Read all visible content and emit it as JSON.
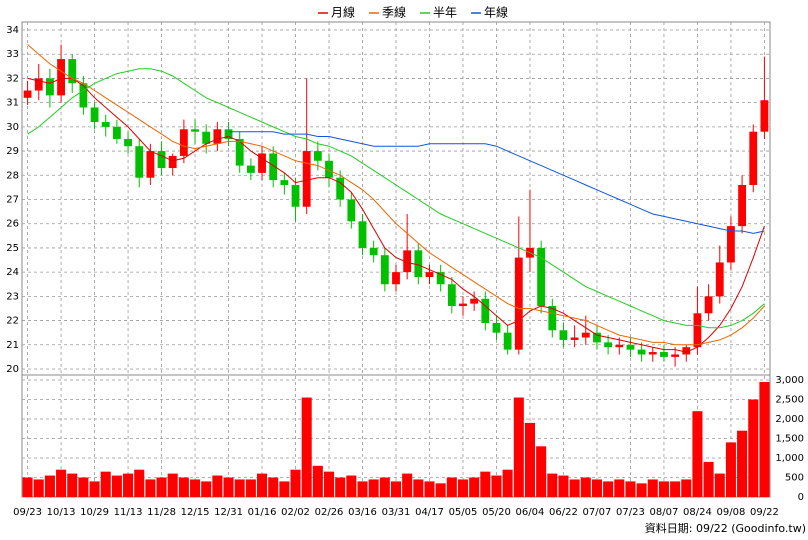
{
  "chart_data": {
    "type": "candlestick",
    "grid": true,
    "up_color": "#ff0000",
    "down_color": "#00c000",
    "volume_color": "#ff0000",
    "categories": [
      "09/23",
      null,
      null,
      "10/13",
      null,
      null,
      "10/29",
      null,
      null,
      "11/13",
      null,
      null,
      "11/28",
      null,
      null,
      "12/15",
      null,
      null,
      "12/31",
      null,
      null,
      "01/16",
      null,
      null,
      "02/02",
      null,
      null,
      "02/26",
      null,
      null,
      "03/16",
      null,
      null,
      "03/31",
      null,
      null,
      "04/17",
      null,
      null,
      "05/05",
      null,
      null,
      "05/20",
      null,
      null,
      "06/04",
      null,
      null,
      "06/22",
      null,
      null,
      "07/07",
      null,
      null,
      "07/23",
      null,
      null,
      "08/07",
      null,
      null,
      "08/24",
      null,
      null,
      "09/08",
      null,
      null,
      "09/22"
    ],
    "open": [
      31.2,
      31.5,
      32.0,
      31.3,
      32.8,
      31.8,
      30.8,
      30.2,
      30.0,
      29.5,
      29.2,
      27.9,
      29.0,
      28.3,
      28.8,
      29.9,
      29.8,
      29.3,
      29.9,
      29.5,
      28.4,
      28.1,
      28.9,
      27.8,
      27.6,
      26.7,
      29.0,
      28.6,
      27.9,
      27.0,
      26.1,
      25.0,
      24.7,
      23.5,
      24.0,
      24.9,
      23.8,
      24.0,
      23.5,
      22.6,
      22.7,
      22.9,
      21.9,
      21.5,
      20.8,
      24.6,
      25.0,
      22.6,
      21.6,
      21.2,
      21.3,
      21.5,
      21.1,
      20.9,
      21.0,
      20.8,
      20.6,
      20.7,
      20.5,
      20.6,
      20.9,
      22.3,
      23.0,
      24.4,
      25.9,
      27.6,
      29.8
    ],
    "high": [
      31.9,
      32.6,
      32.4,
      33.4,
      33.0,
      32.1,
      31.0,
      30.5,
      30.3,
      29.8,
      29.5,
      29.3,
      29.4,
      28.9,
      30.3,
      30.3,
      30.1,
      30.2,
      30.2,
      29.8,
      28.7,
      29.2,
      29.2,
      28.1,
      27.9,
      32.0,
      29.4,
      28.9,
      28.2,
      27.3,
      26.4,
      25.3,
      25.0,
      24.3,
      26.4,
      25.2,
      24.3,
      24.3,
      23.8,
      23.0,
      23.2,
      23.2,
      22.2,
      21.8,
      26.3,
      27.4,
      25.3,
      22.9,
      21.9,
      21.8,
      22.2,
      21.8,
      21.4,
      21.3,
      21.3,
      21.1,
      20.9,
      21.0,
      20.9,
      21.0,
      23.4,
      23.5,
      25.1,
      26.3,
      28.0,
      30.1,
      32.9
    ],
    "low": [
      30.9,
      31.1,
      30.8,
      31.0,
      31.4,
      30.5,
      29.9,
      29.6,
      29.3,
      28.9,
      27.5,
      27.6,
      28.0,
      28.0,
      28.5,
      29.3,
      28.9,
      29.0,
      29.2,
      28.1,
      27.8,
      27.8,
      27.5,
      27.2,
      26.1,
      26.4,
      28.2,
      27.5,
      26.7,
      25.8,
      24.7,
      24.4,
      23.2,
      23.2,
      23.7,
      23.5,
      23.5,
      23.2,
      22.3,
      22.2,
      22.4,
      21.6,
      21.2,
      20.6,
      20.6,
      24.0,
      22.3,
      21.3,
      20.9,
      20.9,
      21.0,
      20.8,
      20.6,
      20.6,
      20.5,
      20.3,
      20.3,
      20.3,
      20.1,
      20.3,
      20.6,
      22.0,
      22.7,
      24.1,
      25.6,
      27.3,
      29.5
    ],
    "close": [
      31.5,
      32.0,
      31.3,
      32.8,
      31.8,
      30.8,
      30.2,
      30.0,
      29.5,
      29.2,
      27.9,
      29.0,
      28.3,
      28.8,
      29.9,
      29.8,
      29.3,
      29.9,
      29.5,
      28.4,
      28.1,
      28.9,
      27.8,
      27.6,
      26.7,
      29.0,
      28.6,
      27.9,
      27.0,
      26.1,
      25.0,
      24.7,
      23.5,
      24.0,
      24.9,
      23.8,
      24.0,
      23.5,
      22.6,
      22.7,
      22.9,
      21.9,
      21.5,
      20.8,
      24.6,
      25.0,
      22.6,
      21.6,
      21.2,
      21.3,
      21.5,
      21.1,
      20.9,
      21.0,
      20.8,
      20.6,
      20.7,
      20.5,
      20.6,
      20.9,
      22.3,
      23.0,
      24.4,
      25.9,
      27.6,
      29.8,
      31.1
    ],
    "volume": [
      500,
      450,
      550,
      700,
      600,
      500,
      400,
      650,
      550,
      600,
      700,
      450,
      500,
      600,
      500,
      450,
      400,
      550,
      500,
      450,
      450,
      600,
      500,
      400,
      700,
      2550,
      800,
      650,
      500,
      550,
      400,
      450,
      500,
      400,
      600,
      450,
      400,
      350,
      500,
      450,
      500,
      650,
      550,
      700,
      2550,
      1900,
      1300,
      600,
      550,
      450,
      500,
      450,
      400,
      450,
      400,
      350,
      450,
      400,
      400,
      450,
      2200,
      900,
      600,
      1400,
      1700,
      2500,
      2950
    ],
    "series": [
      {
        "name": "月線",
        "color": "#dd0000",
        "values": [
          32.0,
          31.9,
          31.8,
          32.0,
          32.0,
          31.7,
          31.2,
          30.8,
          30.4,
          30.0,
          29.5,
          29.0,
          28.8,
          28.6,
          28.7,
          29.0,
          29.3,
          29.5,
          29.6,
          29.4,
          29.0,
          28.7,
          28.4,
          28.1,
          27.7,
          27.8,
          27.9,
          27.9,
          27.7,
          27.3,
          26.6,
          25.8,
          25.0,
          24.6,
          24.4,
          24.3,
          24.1,
          23.9,
          23.7,
          23.3,
          23.0,
          22.6,
          22.2,
          21.8,
          22.0,
          22.4,
          22.6,
          22.5,
          22.3,
          22.0,
          21.7,
          21.4,
          21.3,
          21.2,
          21.1,
          21.0,
          20.9,
          20.8,
          20.8,
          20.7,
          20.9,
          21.3,
          21.8,
          22.5,
          23.4,
          24.6,
          25.9
        ]
      },
      {
        "name": "季線",
        "color": "#ee6600",
        "values": [
          33.4,
          33.0,
          32.6,
          32.3,
          32.0,
          31.8,
          31.5,
          31.2,
          30.9,
          30.6,
          30.3,
          30.0,
          29.7,
          29.4,
          29.2,
          29.1,
          29.2,
          29.3,
          29.4,
          29.4,
          29.3,
          29.2,
          29.0,
          28.8,
          28.6,
          28.5,
          28.4,
          28.2,
          28.0,
          27.7,
          27.4,
          27.0,
          26.5,
          26.0,
          25.6,
          25.2,
          24.8,
          24.5,
          24.2,
          23.9,
          23.6,
          23.3,
          23.0,
          22.7,
          22.5,
          22.5,
          22.4,
          22.3,
          22.2,
          22.1,
          22.0,
          21.8,
          21.6,
          21.4,
          21.3,
          21.2,
          21.1,
          21.1,
          21.0,
          21.0,
          21.0,
          21.1,
          21.2,
          21.4,
          21.7,
          22.1,
          22.6
        ]
      },
      {
        "name": "半年",
        "color": "#22cc22",
        "values": [
          29.7,
          30.0,
          30.4,
          30.8,
          31.2,
          31.5,
          31.8,
          32.0,
          32.2,
          32.3,
          32.4,
          32.4,
          32.3,
          32.1,
          31.8,
          31.5,
          31.2,
          31.0,
          30.8,
          30.6,
          30.4,
          30.2,
          30.0,
          29.8,
          29.6,
          29.5,
          29.3,
          29.2,
          29.0,
          28.8,
          28.5,
          28.2,
          27.9,
          27.6,
          27.3,
          27.0,
          26.7,
          26.4,
          26.2,
          26.0,
          25.8,
          25.6,
          25.4,
          25.2,
          25.0,
          24.8,
          24.6,
          24.3,
          24.0,
          23.7,
          23.4,
          23.2,
          23.0,
          22.8,
          22.6,
          22.4,
          22.2,
          22.0,
          21.9,
          21.8,
          21.8,
          21.7,
          21.7,
          21.8,
          22.0,
          22.3,
          22.7
        ]
      },
      {
        "name": "年線",
        "color": "#1155dd",
        "values": [
          null,
          null,
          null,
          null,
          null,
          null,
          null,
          null,
          null,
          null,
          null,
          null,
          null,
          null,
          null,
          null,
          null,
          null,
          29.8,
          29.8,
          29.8,
          29.8,
          29.8,
          29.7,
          29.7,
          29.7,
          29.6,
          29.6,
          29.5,
          29.4,
          29.3,
          29.2,
          29.2,
          29.2,
          29.2,
          29.2,
          29.3,
          29.3,
          29.3,
          29.3,
          29.3,
          29.3,
          29.2,
          29.0,
          28.8,
          28.6,
          28.4,
          28.2,
          28.0,
          27.8,
          27.6,
          27.4,
          27.2,
          27.0,
          26.8,
          26.6,
          26.4,
          26.3,
          26.2,
          26.1,
          26.0,
          25.9,
          25.8,
          25.7,
          25.7,
          25.6,
          25.7
        ]
      }
    ],
    "ylim": [
      20,
      34
    ],
    "yticks": [
      20,
      21,
      22,
      23,
      24,
      25,
      26,
      27,
      28,
      29,
      30,
      31,
      32,
      33,
      34
    ],
    "y2lim": [
      0,
      3000
    ],
    "y2ticks": [
      0,
      500,
      {
        "value": 1000,
        "label": "1,000"
      },
      {
        "value": 1500,
        "label": "1,500"
      },
      {
        "value": 2000,
        "label": "2,000"
      },
      {
        "value": 2500,
        "label": "2,500"
      },
      {
        "value": 3000,
        "label": "3,000"
      }
    ],
    "footer": "資料日期: 09/22 (Goodinfo.tw)"
  }
}
